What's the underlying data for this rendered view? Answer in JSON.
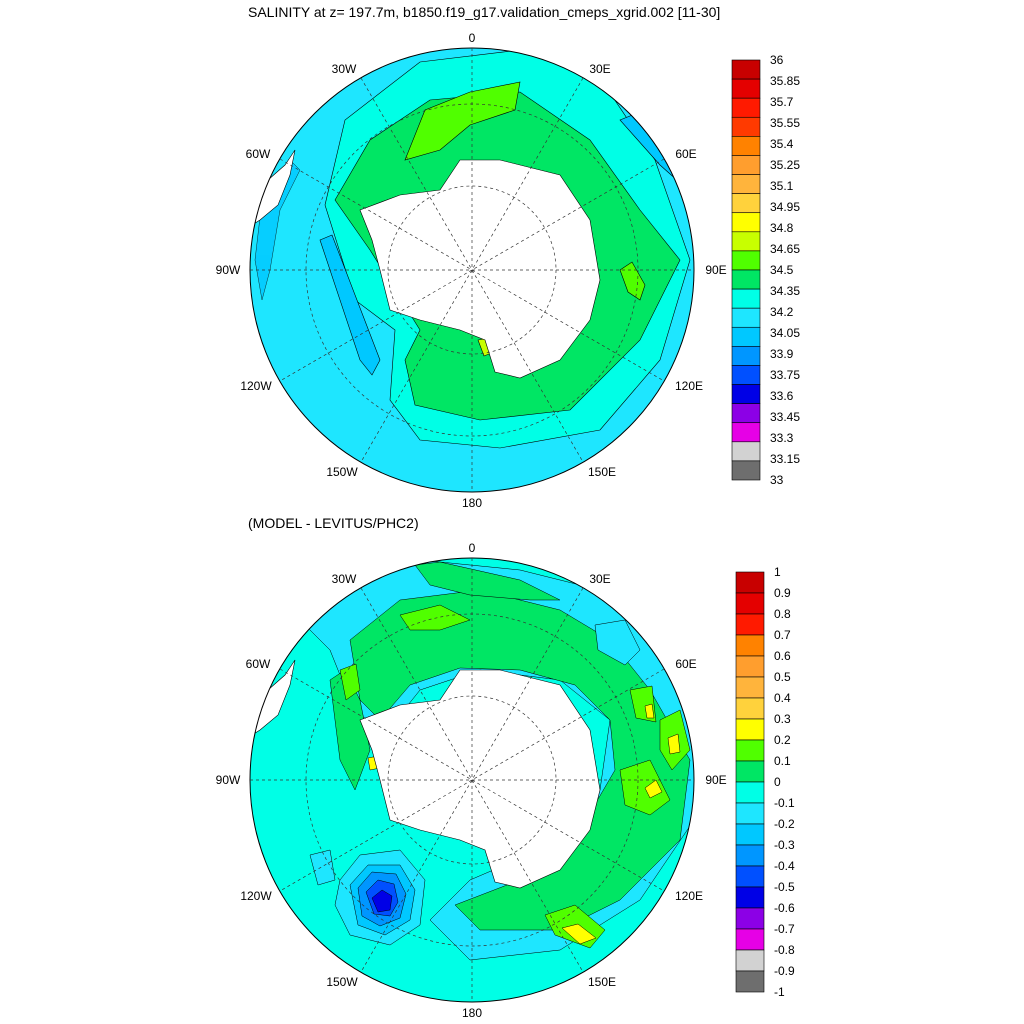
{
  "panel1": {
    "title": "SALINITY at z= 197.7m, b1850.f19_g17.validation_cmeps_xgrid.002 [11-30]",
    "longitude_labels": [
      "0",
      "30E",
      "60E",
      "90E",
      "120E",
      "150E",
      "180",
      "150W",
      "120W",
      "90W",
      "60W",
      "30W"
    ],
    "colorbar": {
      "labels": [
        "36",
        "35.85",
        "35.7",
        "35.55",
        "35.4",
        "35.25",
        "35.1",
        "34.95",
        "34.8",
        "34.65",
        "34.5",
        "34.35",
        "34.2",
        "34.05",
        "33.9",
        "33.75",
        "33.6",
        "33.45",
        "33.3",
        "33.15",
        "33"
      ],
      "colors": [
        "#c80000",
        "#e40000",
        "#ff1a00",
        "#ff3a00",
        "#ff8200",
        "#ff9e2e",
        "#ffb43c",
        "#ffd23c",
        "#ffff00",
        "#c8ff00",
        "#50ff00",
        "#00e664",
        "#00ffe6",
        "#1ee6ff",
        "#00c8ff",
        "#0096ff",
        "#0050ff",
        "#0000e6",
        "#8c00e6",
        "#e600e6",
        "#d2d2d2",
        "#6e6e6e"
      ]
    }
  },
  "panel2": {
    "title": "(MODEL - LEVITUS/PHC2)",
    "longitude_labels": [
      "0",
      "30E",
      "60E",
      "90E",
      "120E",
      "150E",
      "180",
      "150W",
      "120W",
      "90W",
      "60W",
      "30W"
    ],
    "colorbar": {
      "labels": [
        "1",
        "0.9",
        "0.8",
        "0.7",
        "0.6",
        "0.5",
        "0.4",
        "0.3",
        "0.2",
        "0.1",
        "0",
        "-0.1",
        "-0.2",
        "-0.3",
        "-0.4",
        "-0.5",
        "-0.6",
        "-0.7",
        "-0.8",
        "-0.9",
        "-1"
      ],
      "colors": [
        "#c80000",
        "#e40000",
        "#ff1a00",
        "#ff8200",
        "#ff9e2e",
        "#ffb43c",
        "#ffd23c",
        "#ffff00",
        "#50ff00",
        "#00e664",
        "#00ffe6",
        "#1ee6ff",
        "#00c8ff",
        "#0096ff",
        "#0050ff",
        "#0000e6",
        "#8c00e6",
        "#e600e6",
        "#d2d2d2",
        "#6e6e6e"
      ]
    }
  }
}
